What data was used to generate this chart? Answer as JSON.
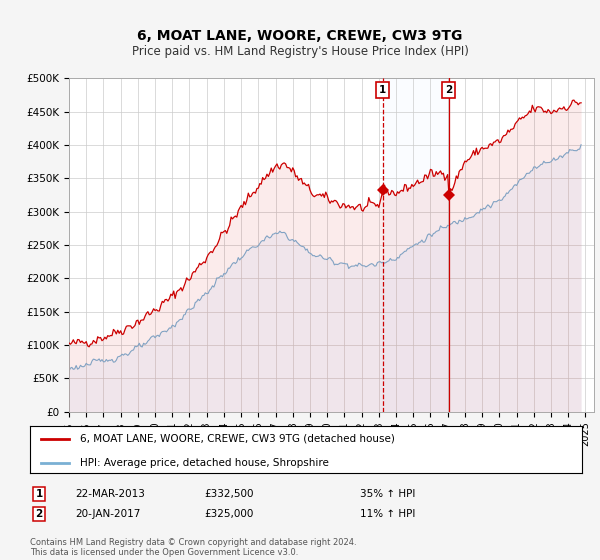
{
  "title": "6, MOAT LANE, WOORE, CREWE, CW3 9TG",
  "subtitle": "Price paid vs. HM Land Registry's House Price Index (HPI)",
  "title_fontsize": 10,
  "subtitle_fontsize": 8.5,
  "ylabel_ticks": [
    "£0",
    "£50K",
    "£100K",
    "£150K",
    "£200K",
    "£250K",
    "£300K",
    "£350K",
    "£400K",
    "£450K",
    "£500K"
  ],
  "ytick_values": [
    0,
    50000,
    100000,
    150000,
    200000,
    250000,
    300000,
    350000,
    400000,
    450000,
    500000
  ],
  "ylim": [
    0,
    500000
  ],
  "xlim_start": 1995.0,
  "xlim_end": 2025.5,
  "background_color": "#f5f5f5",
  "plot_bg_color": "#ffffff",
  "grid_color": "#cccccc",
  "red_color": "#cc0000",
  "blue_color": "#7ab0d4",
  "blue_fill_color": "#ddeeff",
  "marker1_year": 2013.22,
  "marker2_year": 2017.05,
  "marker1_value": 332500,
  "marker2_value": 325000,
  "legend_line1": "6, MOAT LANE, WOORE, CREWE, CW3 9TG (detached house)",
  "legend_line2": "HPI: Average price, detached house, Shropshire",
  "table_row1_num": "1",
  "table_row1_date": "22-MAR-2013",
  "table_row1_price": "£332,500",
  "table_row1_hpi": "35% ↑ HPI",
  "table_row2_num": "2",
  "table_row2_date": "20-JAN-2017",
  "table_row2_price": "£325,000",
  "table_row2_hpi": "11% ↑ HPI",
  "copyright": "Contains HM Land Registry data © Crown copyright and database right 2024.\nThis data is licensed under the Open Government Licence v3.0."
}
